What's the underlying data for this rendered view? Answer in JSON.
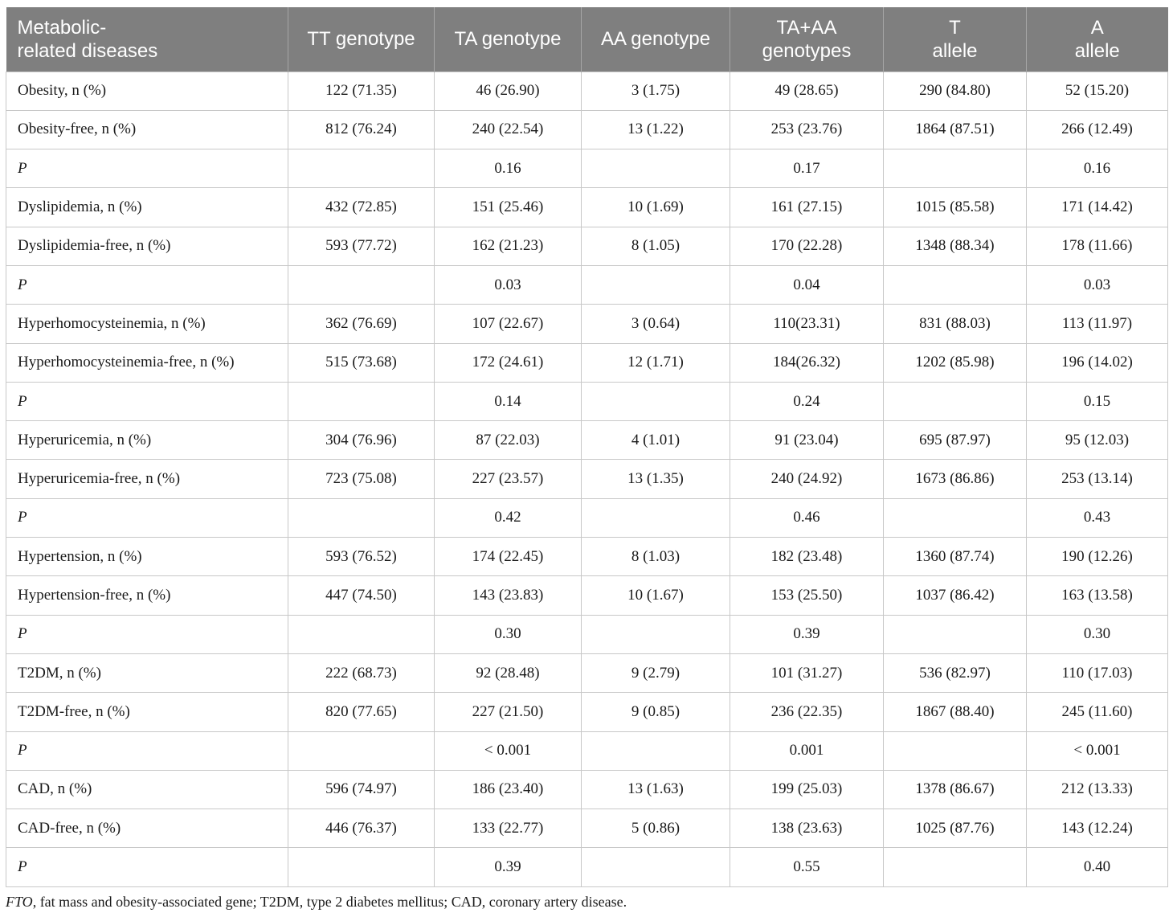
{
  "table": {
    "headers": [
      "Metabolic-\nrelated diseases",
      "TT genotype",
      "TA genotype",
      "AA genotype",
      "TA+AA\ngenotypes",
      "T\nallele",
      "A\nallele"
    ],
    "rows": [
      [
        "Obesity, n (%)",
        "122 (71.35)",
        "46 (26.90)",
        "3 (1.75)",
        "49 (28.65)",
        "290 (84.80)",
        "52 (15.20)"
      ],
      [
        "Obesity-free, n (%)",
        "812 (76.24)",
        "240 (22.54)",
        "13 (1.22)",
        "253 (23.76)",
        "1864 (87.51)",
        "266 (12.49)"
      ],
      [
        "P",
        "",
        "0.16",
        "",
        "0.17",
        "",
        "0.16"
      ],
      [
        "Dyslipidemia, n (%)",
        "432 (72.85)",
        "151 (25.46)",
        "10 (1.69)",
        "161 (27.15)",
        "1015 (85.58)",
        "171 (14.42)"
      ],
      [
        "Dyslipidemia-free, n (%)",
        "593 (77.72)",
        "162 (21.23)",
        "8 (1.05)",
        "170 (22.28)",
        "1348 (88.34)",
        "178 (11.66)"
      ],
      [
        "P",
        "",
        "0.03",
        "",
        "0.04",
        "",
        "0.03"
      ],
      [
        "Hyperhomocysteinemia, n (%)",
        "362 (76.69)",
        "107 (22.67)",
        "3 (0.64)",
        "110(23.31)",
        "831 (88.03)",
        "113 (11.97)"
      ],
      [
        "Hyperhomocysteinemia-free, n (%)",
        "515 (73.68)",
        "172 (24.61)",
        "12 (1.71)",
        "184(26.32)",
        "1202 (85.98)",
        "196 (14.02)"
      ],
      [
        "P",
        "",
        "0.14",
        "",
        "0.24",
        "",
        "0.15"
      ],
      [
        "Hyperuricemia, n (%)",
        "304 (76.96)",
        "87 (22.03)",
        "4 (1.01)",
        "91 (23.04)",
        "695 (87.97)",
        "95 (12.03)"
      ],
      [
        "Hyperuricemia-free, n (%)",
        "723 (75.08)",
        "227 (23.57)",
        "13 (1.35)",
        "240 (24.92)",
        "1673 (86.86)",
        "253 (13.14)"
      ],
      [
        "P",
        "",
        "0.42",
        "",
        "0.46",
        "",
        "0.43"
      ],
      [
        "Hypertension, n (%)",
        "593 (76.52)",
        "174 (22.45)",
        "8 (1.03)",
        "182 (23.48)",
        "1360 (87.74)",
        "190 (12.26)"
      ],
      [
        "Hypertension-free, n (%)",
        "447 (74.50)",
        "143 (23.83)",
        "10 (1.67)",
        "153 (25.50)",
        "1037 (86.42)",
        "163 (13.58)"
      ],
      [
        "P",
        "",
        "0.30",
        "",
        "0.39",
        "",
        "0.30"
      ],
      [
        "T2DM, n (%)",
        "222 (68.73)",
        "92 (28.48)",
        "9 (2.79)",
        "101 (31.27)",
        "536 (82.97)",
        "110 (17.03)"
      ],
      [
        "T2DM-free, n (%)",
        "820 (77.65)",
        "227 (21.50)",
        "9 (0.85)",
        "236 (22.35)",
        "1867 (88.40)",
        "245 (11.60)"
      ],
      [
        "P",
        "",
        "< 0.001",
        "",
        "0.001",
        "",
        "< 0.001"
      ],
      [
        "CAD, n (%)",
        "596 (74.97)",
        "186 (23.40)",
        "13 (1.63)",
        "199 (25.03)",
        "1378 (86.67)",
        "212 (13.33)"
      ],
      [
        "CAD-free, n (%)",
        "446 (76.37)",
        "133 (22.77)",
        "5 (0.86)",
        "138 (23.63)",
        "1025 (87.76)",
        "143 (12.24)"
      ],
      [
        "P",
        "",
        "0.39",
        "",
        "0.55",
        "",
        "0.40"
      ]
    ]
  },
  "footnote": {
    "abbr": "FTO",
    "text": ", fat mass and obesity-associated gene; T2DM, type 2 diabetes mellitus; CAD, coronary artery disease."
  }
}
